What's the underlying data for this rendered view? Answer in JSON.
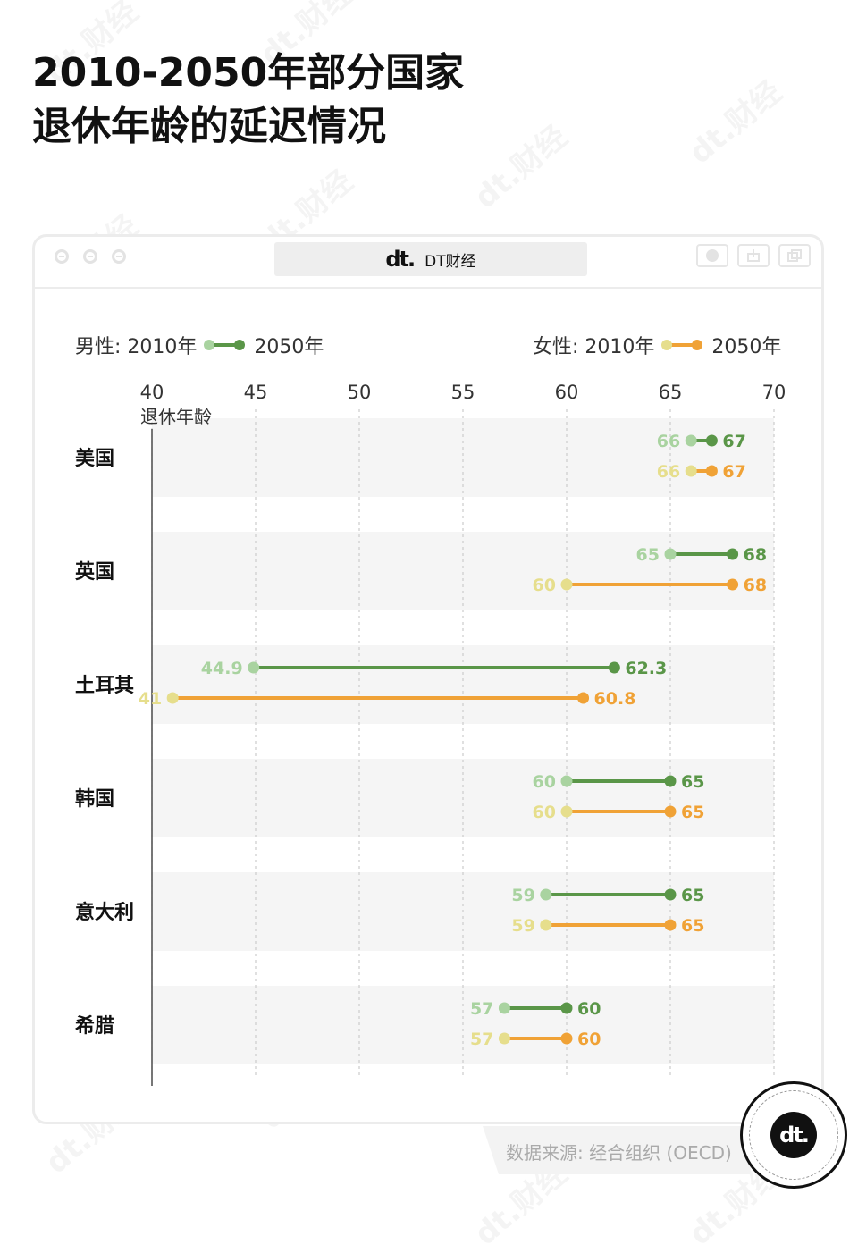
{
  "title_line1": "2010-2050年部分国家",
  "title_line2": "退休年龄的延迟情况",
  "window": {
    "tab_logo": "dt.",
    "tab_name": "DT财经"
  },
  "legend": {
    "male_label": "男性: 2010年",
    "male_end": "2050年",
    "female_label": "女性: 2010年",
    "female_end": "2050年"
  },
  "colors": {
    "male_2010": "#a9d3a0",
    "male_2050": "#5a9648",
    "female_2010": "#e6de8c",
    "female_2050": "#f0a236",
    "band": "#f5f5f5",
    "grid": "#cccccc"
  },
  "chart_data": {
    "type": "dumbbell",
    "axis_unit_label": "退休年龄",
    "xlim": [
      40,
      70
    ],
    "xticks": [
      "40",
      "45",
      "50",
      "55",
      "60",
      "65",
      "70"
    ],
    "grid": "vertical dashed",
    "legend_placement": "top",
    "categories": [
      "美国",
      "英国",
      "土耳其",
      "韩国",
      "意大利",
      "希腊"
    ],
    "series": [
      {
        "name": "男性",
        "start": [
          66,
          65,
          44.9,
          60,
          59,
          57
        ],
        "end": [
          67,
          68,
          62.3,
          65,
          65,
          60
        ],
        "start_labels": [
          "66",
          "65",
          "44.9",
          "60",
          "59",
          "57"
        ],
        "end_labels": [
          "67",
          "68",
          "62.3",
          "65",
          "65",
          "60"
        ]
      },
      {
        "name": "女性",
        "start": [
          66,
          60,
          41,
          60,
          59,
          57
        ],
        "end": [
          67,
          68,
          60.8,
          65,
          65,
          60
        ],
        "start_labels": [
          "66",
          "60",
          "41",
          "60",
          "59",
          "57"
        ],
        "end_labels": [
          "67",
          "68",
          "60.8",
          "65",
          "65",
          "60"
        ]
      }
    ]
  },
  "source": "数据来源: 经合组织 (OECD)",
  "watermark": "dt.财经",
  "badge_logo": "dt."
}
